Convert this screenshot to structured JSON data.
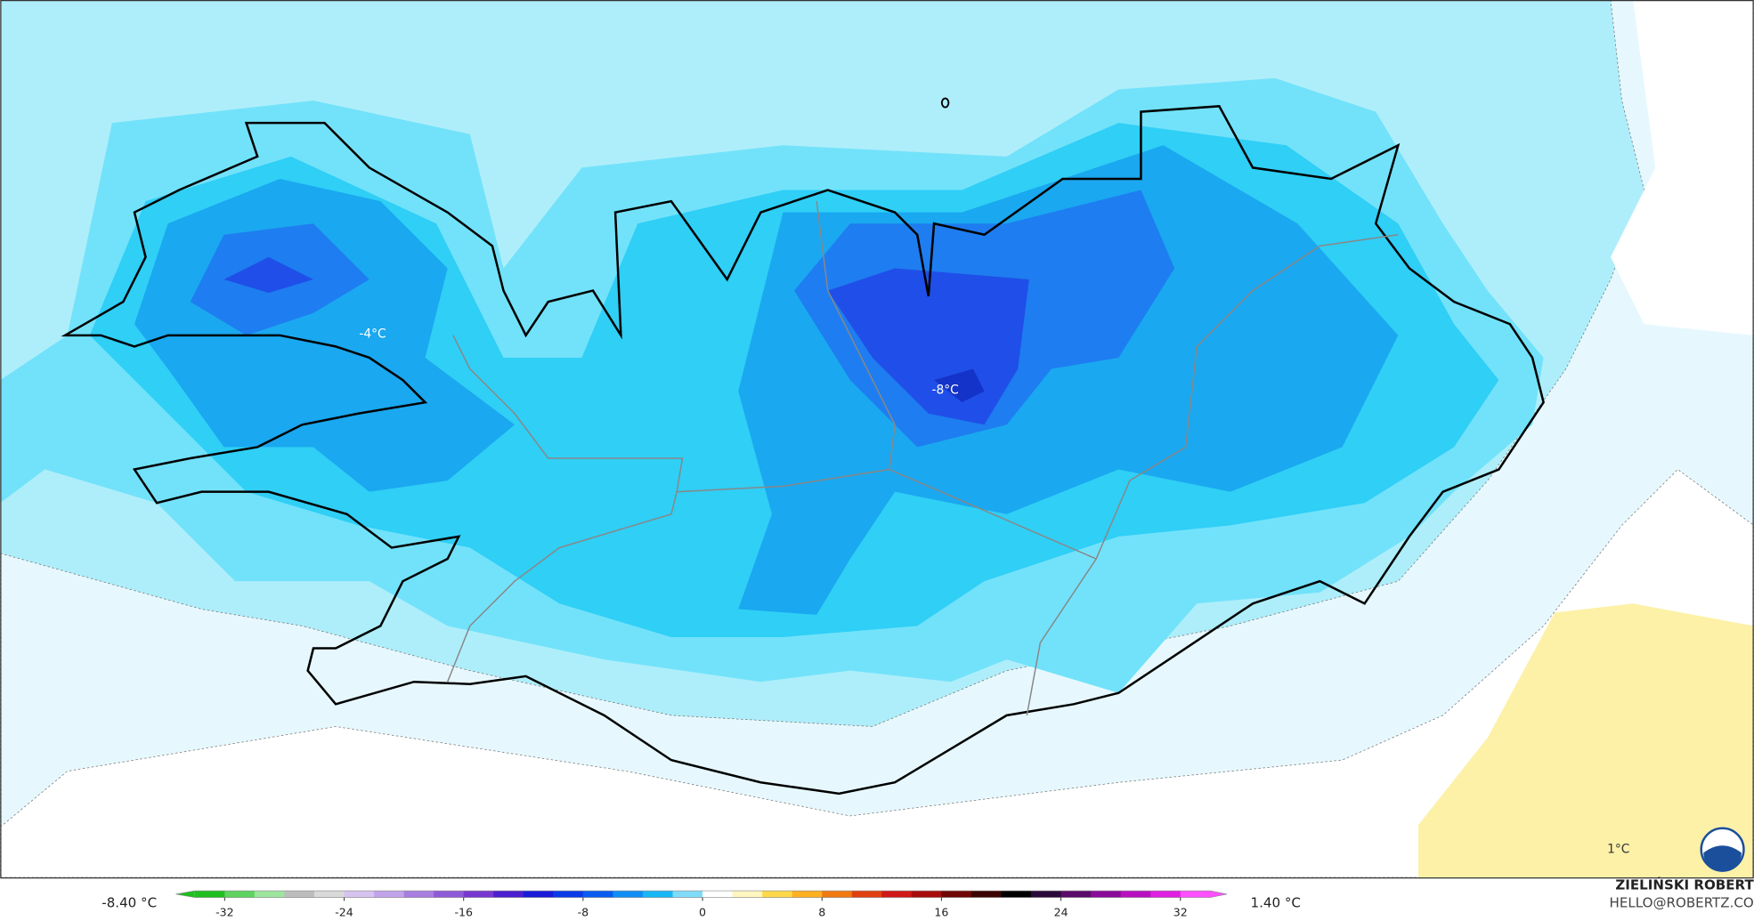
{
  "map": {
    "labels": [
      "-4°C",
      "-8°C",
      "1°C"
    ]
  },
  "legend": {
    "min_label": "-8.40 °C",
    "max_label": "1.40 °C",
    "range": [
      -34,
      34
    ],
    "ticks": [
      -32,
      -24,
      -16,
      -8,
      0,
      8,
      16,
      24,
      32
    ],
    "colors": [
      "#1fbf1f",
      "#5fd35f",
      "#9ee59e",
      "#bdbdbd",
      "#d9d9d9",
      "#d6c3ef",
      "#c0a3ea",
      "#a77ee0",
      "#8e5bd8",
      "#7838d0",
      "#4b1fd0",
      "#1a1ad9",
      "#0a3ae8",
      "#0a5cf0",
      "#0f8ff5",
      "#17b6f5",
      "#7fdcf8",
      "#ffffff",
      "#fff5c0",
      "#ffd84a",
      "#ffb020",
      "#f07a10",
      "#e04010",
      "#d01818",
      "#a80c0c",
      "#700606",
      "#3a0404",
      "#000000",
      "#2a0a3a",
      "#5a0a6a",
      "#8a0a9a",
      "#b810c0",
      "#e020e0",
      "#ff50ff"
    ]
  },
  "credit": {
    "name": "ZIELIŃSKI ROBERT",
    "email": "HELLO@ROBERTZ.CO"
  }
}
